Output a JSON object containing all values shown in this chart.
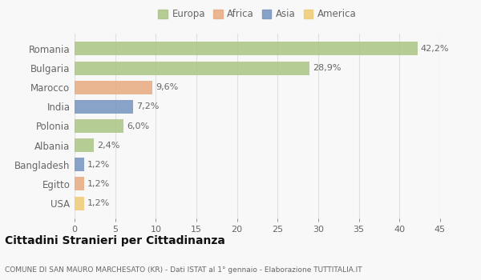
{
  "countries": [
    "Romania",
    "Bulgaria",
    "Marocco",
    "India",
    "Polonia",
    "Albania",
    "Bangladesh",
    "Egitto",
    "USA"
  ],
  "values": [
    42.2,
    28.9,
    9.6,
    7.2,
    6.0,
    2.4,
    1.2,
    1.2,
    1.2
  ],
  "labels": [
    "42,2%",
    "28,9%",
    "9,6%",
    "7,2%",
    "6,0%",
    "2,4%",
    "1,2%",
    "1,2%",
    "1,2%"
  ],
  "colors": [
    "#a8c37f",
    "#a8c37f",
    "#e8a87c",
    "#7191be",
    "#a8c37f",
    "#a8c37f",
    "#7191be",
    "#e8a87c",
    "#f0c96e"
  ],
  "legend_labels": [
    "Europa",
    "Africa",
    "Asia",
    "America"
  ],
  "legend_colors": [
    "#a8c37f",
    "#e8a87c",
    "#7191be",
    "#f0c96e"
  ],
  "title": "Cittadini Stranieri per Cittadinanza",
  "subtitle": "COMUNE DI SAN MAURO MARCHESATO (KR) - Dati ISTAT al 1° gennaio - Elaborazione TUTTITALIA.IT",
  "xlim": [
    0,
    45
  ],
  "xticks": [
    0,
    5,
    10,
    15,
    20,
    25,
    30,
    35,
    40,
    45
  ],
  "bg_color": "#f8f8f8",
  "grid_color": "#e0e0e0",
  "text_color": "#666666",
  "title_color": "#111111",
  "subtitle_color": "#666666",
  "bar_alpha": 0.82
}
